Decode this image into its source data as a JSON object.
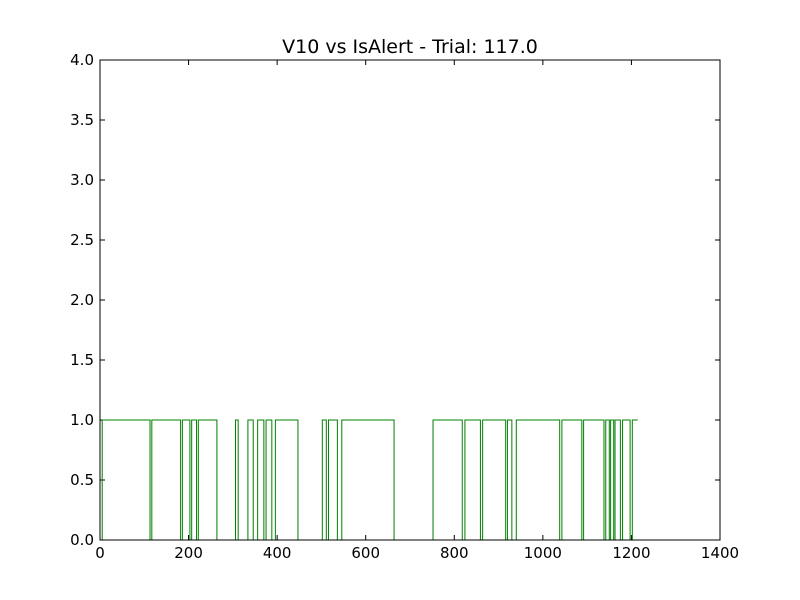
{
  "chart_data": {
    "type": "line",
    "title": "V10 vs IsAlert - Trial: 117.0",
    "xlabel": "",
    "ylabel": "",
    "xlim": [
      0,
      1400
    ],
    "ylim": [
      0,
      4.0
    ],
    "x_ticks": [
      "0",
      "200",
      "400",
      "600",
      "800",
      "1000",
      "1200",
      "1400"
    ],
    "x_tick_values": [
      0,
      200,
      400,
      600,
      800,
      1000,
      1200,
      1400
    ],
    "y_ticks": [
      "0.0",
      "0.5",
      "1.0",
      "1.5",
      "2.0",
      "2.5",
      "3.0",
      "3.5",
      "4.0"
    ],
    "y_tick_values": [
      0,
      0.5,
      1.0,
      1.5,
      2.0,
      2.5,
      3.0,
      3.5,
      4.0
    ],
    "grid": false,
    "legend": "none",
    "series": [
      {
        "color": "#008000",
        "step": true,
        "points": [
          [
            0,
            0
          ],
          [
            5,
            1
          ],
          [
            113,
            0
          ],
          [
            117,
            1
          ],
          [
            182,
            0
          ],
          [
            186,
            1
          ],
          [
            203,
            0
          ],
          [
            207,
            1
          ],
          [
            218,
            0
          ],
          [
            222,
            1
          ],
          [
            264,
            0
          ],
          [
            306,
            1
          ],
          [
            312,
            0
          ],
          [
            334,
            1
          ],
          [
            346,
            0
          ],
          [
            356,
            1
          ],
          [
            370,
            0
          ],
          [
            375,
            1
          ],
          [
            388,
            0
          ],
          [
            396,
            1
          ],
          [
            447,
            0
          ],
          [
            502,
            1
          ],
          [
            511,
            0
          ],
          [
            516,
            1
          ],
          [
            536,
            0
          ],
          [
            546,
            1
          ],
          [
            664,
            0
          ],
          [
            752,
            1
          ],
          [
            818,
            0
          ],
          [
            824,
            1
          ],
          [
            859,
            0
          ],
          [
            864,
            1
          ],
          [
            916,
            0
          ],
          [
            920,
            1
          ],
          [
            930,
            0
          ],
          [
            940,
            1
          ],
          [
            1038,
            0
          ],
          [
            1043,
            1
          ],
          [
            1088,
            0
          ],
          [
            1092,
            1
          ],
          [
            1138,
            0
          ],
          [
            1142,
            1
          ],
          [
            1150,
            0
          ],
          [
            1153,
            1
          ],
          [
            1160,
            0
          ],
          [
            1163,
            1
          ],
          [
            1175,
            0
          ],
          [
            1180,
            1
          ],
          [
            1197,
            0
          ],
          [
            1202,
            1
          ],
          [
            1214,
            1
          ]
        ]
      }
    ]
  }
}
